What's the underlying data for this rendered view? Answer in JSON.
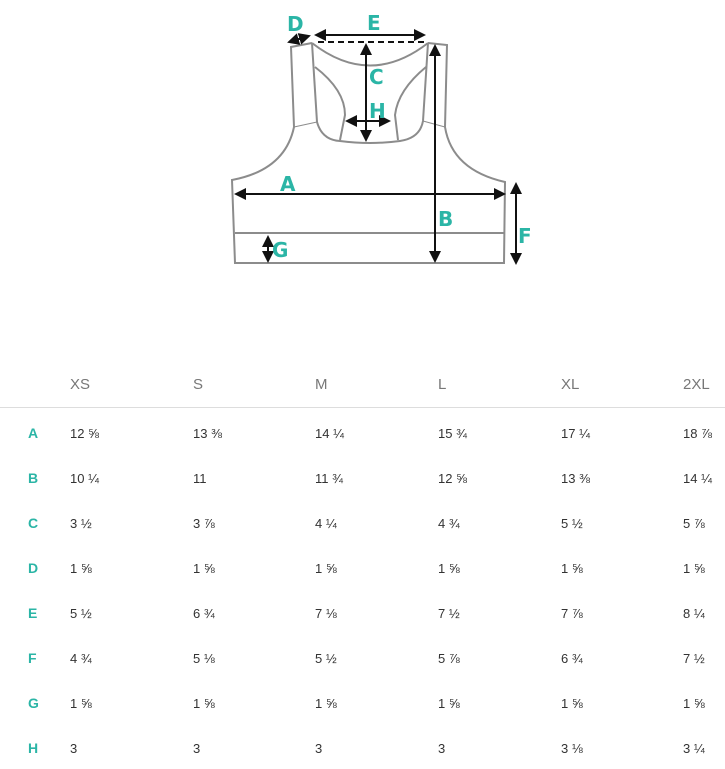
{
  "diagram": {
    "labels": {
      "A": "A",
      "B": "B",
      "C": "C",
      "D": "D",
      "E": "E",
      "F": "F",
      "G": "G",
      "H": "H"
    },
    "accent_color": "#2bb5a6",
    "outline_color": "#8c8c8c"
  },
  "table": {
    "sizes": [
      "XS",
      "S",
      "M",
      "L",
      "XL",
      "2XL"
    ],
    "rows": [
      {
        "label": "A",
        "values": [
          "12 ⅝",
          "13 ⅜",
          "14 ¼",
          "15 ¾",
          "17 ¼",
          "18 ⅞"
        ]
      },
      {
        "label": "B",
        "values": [
          "10 ¼",
          "11",
          "11 ¾",
          "12 ⅝",
          "13 ⅜",
          "14 ¼"
        ]
      },
      {
        "label": "C",
        "values": [
          "3 ½",
          "3 ⅞",
          "4 ¼",
          "4 ¾",
          "5 ½",
          "5 ⅞"
        ]
      },
      {
        "label": "D",
        "values": [
          "1 ⅝",
          "1 ⅝",
          "1 ⅝",
          "1 ⅝",
          "1 ⅝",
          "1 ⅝"
        ]
      },
      {
        "label": "E",
        "values": [
          "5 ½",
          "6 ¾",
          "7 ⅛",
          "7 ½",
          "7 ⅞",
          "8 ¼"
        ]
      },
      {
        "label": "F",
        "values": [
          "4 ¾",
          "5 ⅛",
          "5 ½",
          "5 ⅞",
          "6 ¾",
          "7 ½"
        ]
      },
      {
        "label": "G",
        "values": [
          "1 ⅝",
          "1 ⅝",
          "1 ⅝",
          "1 ⅝",
          "1 ⅝",
          "1 ⅝"
        ]
      },
      {
        "label": "H",
        "values": [
          "3",
          "3",
          "3",
          "3",
          "3 ⅛",
          "3 ¼"
        ]
      }
    ]
  }
}
